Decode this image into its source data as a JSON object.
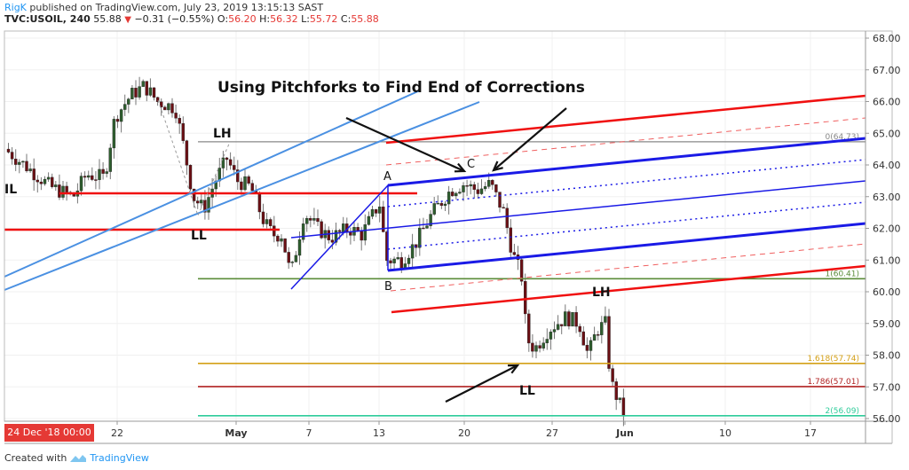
{
  "header": {
    "author": "RigK",
    "published": " published on TradingView.com, July 23, 2019 13:15:13 SAST",
    "symbol": "TVC:USOIL, 240",
    "last": "55.88",
    "change": "−0.31 (−0.55%)",
    "o_label": "O:",
    "o": "56.20",
    "h_label": "H:",
    "h": "56.32",
    "l_label": "L:",
    "l": "55.72",
    "c_label": "C:",
    "c": "55.88"
  },
  "footer": {
    "created_with": "Created with",
    "brand": "TradingView"
  },
  "crosshair_date": "24 Dec '18   00:00",
  "chart_data": {
    "type": "candlestick",
    "title": "Using Pitchforks to Find End of Corrections",
    "symbol": "TVC:USOIL",
    "interval": "240",
    "yticks": [
      "68.00",
      "67.00",
      "66.00",
      "65.00",
      "64.00",
      "63.00",
      "62.00",
      "61.00",
      "60.00",
      "59.00",
      "58.00",
      "57.00",
      "56.00"
    ],
    "ylim": [
      55.9,
      68.2
    ],
    "xticks": [
      {
        "label": "22",
        "bold": false
      },
      {
        "label": "May",
        "bold": true
      },
      {
        "label": "7",
        "bold": false
      },
      {
        "label": "13",
        "bold": false
      },
      {
        "label": "20",
        "bold": false
      },
      {
        "label": "27",
        "bold": false
      },
      {
        "label": "Jun",
        "bold": true
      },
      {
        "label": "10",
        "bold": false
      },
      {
        "label": "17",
        "bold": false
      }
    ],
    "fib_levels": [
      {
        "label": "0(64.73)",
        "value": 64.73,
        "color": "#888888"
      },
      {
        "label": "1(60.41)",
        "value": 60.41,
        "color": "#5b8c3a"
      },
      {
        "label": "1.618(57.74)",
        "value": 57.74,
        "color": "#d4a017"
      },
      {
        "label": "1.786(57.01)",
        "value": 57.01,
        "color": "#b22222"
      },
      {
        "label": "2(56.09)",
        "value": 56.09,
        "color": "#2ecc9a"
      }
    ],
    "annotations": [
      "LH",
      "LL",
      "LH",
      "LL",
      "IL",
      "A",
      "B",
      "C"
    ],
    "pitchfork_points": {
      "A": 63.3,
      "B": 60.7,
      "C": 63.6
    }
  }
}
